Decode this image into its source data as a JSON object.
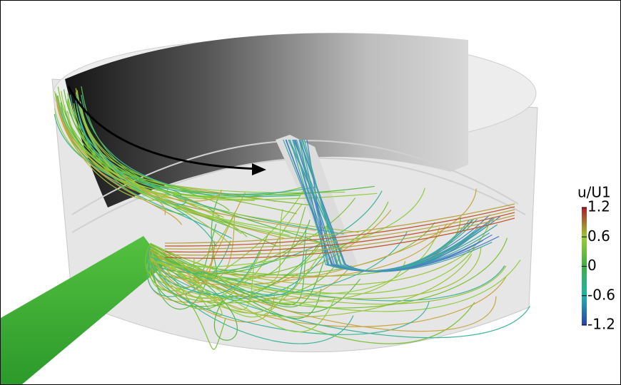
{
  "colorbar": {
    "title": "u/U1",
    "range": [
      -1.2,
      1.2
    ],
    "ticks": [
      1.2,
      0.6,
      0,
      -0.6,
      -1.2
    ]
  }
}
